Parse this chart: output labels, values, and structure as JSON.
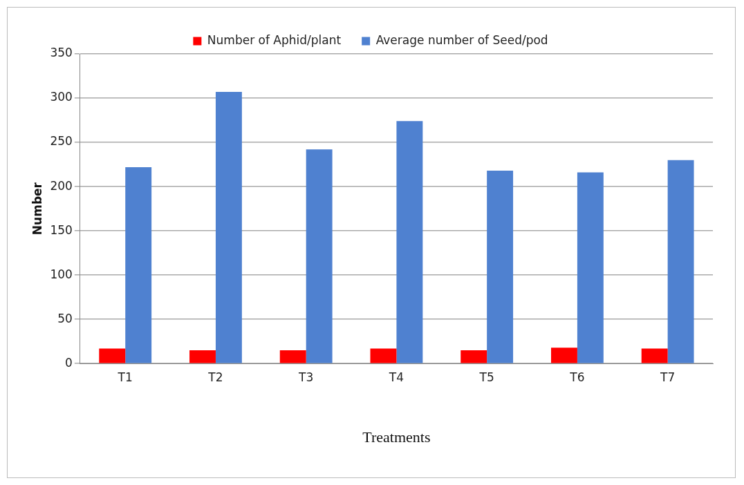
{
  "chart_data": {
    "type": "bar",
    "xlabel": "Treatments",
    "ylabel": "Number",
    "categories": [
      "T1",
      "T2",
      "T3",
      "T4",
      "T5",
      "T6",
      "T7"
    ],
    "series": [
      {
        "name": "Number of Aphid/plant",
        "color": "#ff0000",
        "values": [
          17,
          15,
          15,
          17,
          15,
          18,
          17
        ]
      },
      {
        "name": "Average number of Seed/pod",
        "color": "#4f81d0",
        "values": [
          222,
          307,
          242,
          274,
          218,
          216,
          230
        ]
      }
    ],
    "ylim": [
      0,
      350
    ],
    "yticks": [
      0,
      50,
      100,
      150,
      200,
      250,
      300,
      350
    ],
    "grid": "y",
    "legend": "top"
  }
}
